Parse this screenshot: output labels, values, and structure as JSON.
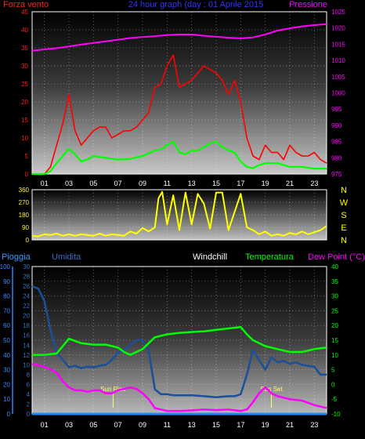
{
  "chart_data": [
    {
      "type": "line",
      "panel": "wind-pressure",
      "title": "24 hour graph (day : 01 Aprile 2015",
      "ylabel_left": "Forza vento",
      "ylabel_right": "Pressione",
      "ylim_left": [
        0,
        45
      ],
      "ylim_right": [
        975,
        1025
      ],
      "yticks_left": [
        "0",
        "5",
        "10",
        "15",
        "20",
        "25",
        "30",
        "35",
        "40",
        "45"
      ],
      "yticks_right": [
        "975",
        "980",
        "985",
        "990",
        "995",
        "1000",
        "1005",
        "1010",
        "1015",
        "1020",
        "1025"
      ],
      "xlim": [
        0,
        24
      ],
      "xticks": [
        "01",
        "03",
        "05",
        "07",
        "09",
        "11",
        "13",
        "15",
        "17",
        "19",
        "21",
        "23"
      ],
      "colors": {
        "wind": "#ff0000",
        "wind_avg": "#00ff00",
        "pressure": "#ff00ff"
      },
      "series": [
        {
          "key": "pressure",
          "x": [
            0,
            1,
            2,
            3,
            4,
            5,
            6,
            7,
            8,
            9,
            10,
            11,
            12,
            13,
            14,
            15,
            16,
            17,
            18,
            19,
            20,
            21,
            22,
            23,
            24
          ],
          "values": [
            1013,
            1013.4,
            1013.8,
            1014.3,
            1014.9,
            1015.4,
            1015.9,
            1016.4,
            1016.9,
            1017.2,
            1017.5,
            1017.8,
            1018.0,
            1018.0,
            1017.6,
            1017.3,
            1017.0,
            1016.8,
            1017.1,
            1018.0,
            1019.2,
            1019.9,
            1020.5,
            1020.9,
            1021.2
          ]
        },
        {
          "key": "wind_avg",
          "x": [
            0,
            1,
            1.5,
            2,
            2.5,
            3,
            3.5,
            4,
            4.5,
            5,
            6,
            7,
            8,
            9,
            10,
            10.5,
            11,
            11.5,
            12,
            12.5,
            13,
            13.5,
            14,
            14.5,
            15,
            15.5,
            16,
            16.5,
            17,
            17.5,
            18,
            18.5,
            19,
            20,
            21,
            22,
            23,
            24
          ],
          "values": [
            0,
            0,
            0.8,
            3,
            5,
            7,
            5.5,
            3.5,
            4,
            5,
            4.5,
            4,
            4.2,
            5,
            6.5,
            6.8,
            8,
            9,
            6,
            5.5,
            6.5,
            6.5,
            7.5,
            8.5,
            9,
            7.5,
            6.5,
            6,
            3.5,
            2,
            1.6,
            2.5,
            3,
            3,
            2,
            2,
            1.5,
            1.5
          ]
        },
        {
          "key": "wind",
          "x": [
            0,
            1,
            1.5,
            2,
            2.5,
            3,
            3.5,
            4,
            4.5,
            5,
            5.5,
            6,
            6.5,
            7,
            7.5,
            8,
            8.5,
            9,
            9.5,
            10,
            10.5,
            11,
            11.5,
            12,
            12.5,
            13,
            13.5,
            14,
            14.5,
            15,
            15.5,
            16,
            16.5,
            17,
            17.5,
            18,
            18.5,
            19,
            19.5,
            20,
            20.5,
            21,
            21.5,
            22,
            22.5,
            23,
            23.5,
            24
          ],
          "values": [
            0,
            0,
            2,
            8,
            14,
            22,
            12,
            8,
            10,
            12,
            13,
            13,
            10,
            11,
            12,
            12,
            13,
            15,
            17,
            24,
            25,
            30,
            33,
            24,
            25,
            26,
            28,
            30,
            29,
            28,
            26,
            22,
            26,
            20,
            10,
            5,
            4,
            8,
            6,
            6,
            4,
            8,
            6,
            5,
            5,
            6,
            4,
            3
          ]
        }
      ]
    },
    {
      "type": "line",
      "panel": "wind-direction",
      "ylim": [
        0,
        360
      ],
      "yticks": [
        "0",
        "90",
        "180",
        "270",
        "360"
      ],
      "compass": [
        "N",
        "W",
        "S",
        "E",
        "N"
      ],
      "xlim": [
        0,
        24
      ],
      "xticks": [
        "01",
        "03",
        "05",
        "07",
        "09",
        "11",
        "13",
        "15",
        "17",
        "19",
        "21",
        "23"
      ],
      "color": "#ffff00",
      "series": [
        {
          "key": "direction",
          "x": [
            0,
            0.5,
            1,
            1.5,
            2,
            2.5,
            3,
            3.5,
            4,
            4.5,
            5,
            5.5,
            6,
            6.5,
            7,
            7.5,
            8,
            8.5,
            9,
            9.5,
            10,
            10.3,
            10.6,
            11,
            11.5,
            12,
            12.5,
            13,
            13.5,
            14,
            14.5,
            15,
            15.5,
            16,
            16.5,
            17,
            17.5,
            18,
            18.5,
            19,
            19.5,
            20,
            20.5,
            21,
            21.5,
            22,
            22.5,
            23,
            23.5,
            24
          ],
          "values": [
            30,
            25,
            40,
            35,
            45,
            30,
            40,
            30,
            40,
            35,
            30,
            45,
            30,
            40,
            35,
            30,
            60,
            45,
            85,
            60,
            90,
            300,
            345,
            110,
            320,
            70,
            340,
            110,
            330,
            260,
            80,
            340,
            340,
            70,
            200,
            330,
            90,
            70,
            40,
            60,
            30,
            40,
            30,
            50,
            40,
            60,
            40,
            55,
            70,
            100
          ]
        }
      ]
    },
    {
      "type": "line",
      "panel": "humidity-temperature",
      "legend": [
        "Pioggia",
        "Umidita",
        "Windchill",
        "Temperatura",
        "Dew Point (°C)"
      ],
      "ylim_rain": [
        0,
        100
      ],
      "yticks_rain": [
        "0",
        "10",
        "20",
        "30",
        "40",
        "50",
        "60",
        "70",
        "80",
        "90",
        "100"
      ],
      "ylim_humidity": [
        0,
        30
      ],
      "yticks_humidity": [
        "0",
        "2",
        "4",
        "6",
        "8",
        "10",
        "12",
        "14",
        "16",
        "18",
        "20",
        "22",
        "24",
        "26",
        "28",
        "30"
      ],
      "ylim_temp": [
        -10,
        40
      ],
      "yticks_temp": [
        "-10",
        "-5",
        "0",
        "5",
        "10",
        "15",
        "20",
        "25",
        "30",
        "35",
        "40"
      ],
      "xlim": [
        0,
        24
      ],
      "xticks": [
        "01",
        "03",
        "05",
        "07",
        "09",
        "11",
        "13",
        "15",
        "17",
        "19",
        "21",
        "23"
      ],
      "annotations": [
        {
          "text": "Sun Rise",
          "x": 6.6
        },
        {
          "text": "Sun Set",
          "x": 19.5
        }
      ],
      "colors": {
        "rain": "#1e88ff",
        "humidity": "#1a4f9a",
        "temperature": "#00ff00",
        "dewpoint": "#ff00ff",
        "annotation": "#ffff66"
      },
      "series": [
        {
          "key": "rain",
          "x": [
            0,
            24
          ],
          "values": [
            0,
            0
          ]
        },
        {
          "key": "humidity",
          "x": [
            0,
            0.5,
            1,
            1.5,
            2,
            2.5,
            3,
            3.5,
            4,
            4.5,
            5,
            5.5,
            6,
            6.5,
            7,
            7.5,
            8,
            8.5,
            9,
            9.5,
            10,
            10.5,
            11,
            11.5,
            12,
            13,
            14,
            15,
            16,
            16.5,
            17,
            17.5,
            18,
            18.5,
            19,
            19.5,
            20,
            20.5,
            21,
            21.5,
            22,
            22.5,
            23,
            23.5,
            24
          ],
          "values": [
            26,
            25.5,
            23,
            17,
            12.5,
            11,
            9.5,
            9.8,
            9.3,
            9.6,
            9.5,
            9.8,
            10,
            11,
            12.5,
            13,
            14,
            15,
            15,
            13,
            5,
            4,
            4,
            3.8,
            3.8,
            3.8,
            3.6,
            3.4,
            3.6,
            3.6,
            4,
            8,
            13,
            11,
            9,
            11.5,
            10.5,
            10.8,
            10.2,
            10.5,
            10,
            9.8,
            9.6,
            8,
            8
          ]
        },
        {
          "key": "temperature",
          "x": [
            0,
            1,
            2,
            2.5,
            3,
            4,
            5,
            6,
            7,
            7.5,
            8,
            8.5,
            9,
            9.5,
            10,
            11,
            12,
            13,
            14,
            15,
            16,
            17,
            17.5,
            18,
            19,
            20,
            21,
            22,
            23,
            24
          ],
          "values": [
            10,
            10,
            10.5,
            13,
            15.5,
            14,
            13.5,
            13.5,
            12.5,
            11,
            10,
            11,
            12,
            14,
            16,
            17,
            17.5,
            17.8,
            18,
            18.5,
            19,
            19.5,
            17,
            15,
            13,
            12,
            11,
            11,
            12,
            12.5
          ]
        },
        {
          "key": "dewpoint",
          "x": [
            0,
            1,
            1.5,
            2,
            2.5,
            3,
            3.5,
            4,
            4.5,
            5,
            5.5,
            6,
            6.5,
            7,
            7.5,
            8,
            8.5,
            9,
            9.5,
            10,
            10.5,
            11,
            12,
            13,
            14,
            15,
            16,
            17,
            17.5,
            18,
            18.5,
            19,
            19.5,
            20,
            21,
            22,
            23,
            24
          ],
          "values": [
            7,
            6,
            5,
            4,
            1,
            -1,
            -2,
            -2,
            -2.5,
            -2,
            -2,
            -3,
            -3,
            -2,
            -1.5,
            -1,
            -1.5,
            -3,
            -5,
            -8,
            -8.5,
            -9,
            -9,
            -8.8,
            -8.5,
            -8.7,
            -8.5,
            -9,
            -8.5,
            -6,
            -3,
            -1,
            -3,
            -4,
            -5,
            -5.5,
            -7,
            -8
          ]
        }
      ]
    }
  ]
}
